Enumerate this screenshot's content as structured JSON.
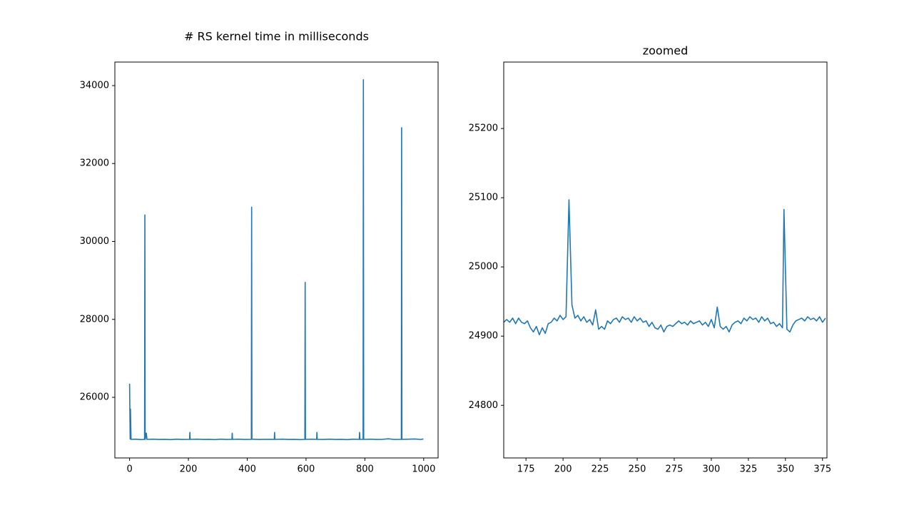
{
  "chart_data": [
    {
      "type": "line",
      "title": "# RS kernel time in milliseconds",
      "color": "#1f77b4",
      "xlim": [
        -50,
        1049
      ],
      "xticks": [
        0,
        200,
        400,
        600,
        800,
        1000
      ],
      "ylim": [
        24444,
        34604
      ],
      "yticks": [
        26000,
        28000,
        30000,
        32000,
        34000
      ],
      "x": [
        0,
        2,
        3,
        5,
        20,
        40,
        51,
        52,
        53,
        57,
        59,
        80,
        100,
        120,
        140,
        160,
        180,
        204,
        205,
        206,
        230,
        250,
        270,
        290,
        310,
        330,
        348,
        349,
        350,
        370,
        390,
        414,
        415,
        416,
        440,
        460,
        492,
        493,
        494,
        520,
        540,
        560,
        580,
        596,
        597,
        598,
        620,
        636,
        637,
        638,
        660,
        680,
        700,
        720,
        740,
        760,
        781,
        782,
        783,
        794,
        795,
        796,
        820,
        840,
        860,
        880,
        900,
        924,
        925,
        926,
        950,
        970,
        990,
        999
      ],
      "values": [
        26350,
        24930,
        25700,
        24920,
        24925,
        24915,
        24920,
        30680,
        24920,
        25080,
        24920,
        24925,
        24918,
        24922,
        24915,
        24925,
        24918,
        24920,
        25100,
        24920,
        24925,
        24918,
        24922,
        24915,
        24925,
        24918,
        24920,
        25080,
        24920,
        24925,
        24918,
        24920,
        30880,
        24925,
        24918,
        24922,
        24920,
        25100,
        24920,
        24925,
        24918,
        24922,
        24915,
        24920,
        28950,
        24920,
        24925,
        24920,
        25100,
        24920,
        24918,
        24925,
        24918,
        24922,
        24915,
        24925,
        24920,
        25100,
        24920,
        24920,
        34150,
        24920,
        24925,
        24918,
        24922,
        24935,
        24918,
        24920,
        32920,
        24920,
        24925,
        24930,
        24918,
        24930
      ]
    },
    {
      "type": "line",
      "title": "zoomed",
      "color": "#1f77b4",
      "xlim": [
        160,
        378
      ],
      "xticks": [
        175,
        200,
        225,
        250,
        275,
        300,
        325,
        350,
        375
      ],
      "ylim": [
        24724,
        25296
      ],
      "yticks": [
        24800,
        24900,
        25000,
        25100,
        25200
      ],
      "x": [
        160,
        162,
        164,
        166,
        168,
        170,
        172,
        174,
        176,
        178,
        180,
        182,
        184,
        186,
        188,
        190,
        192,
        194,
        196,
        198,
        200,
        202,
        204,
        206,
        208,
        210,
        212,
        214,
        216,
        218,
        220,
        222,
        224,
        226,
        228,
        230,
        232,
        234,
        236,
        238,
        240,
        242,
        244,
        246,
        248,
        250,
        252,
        254,
        256,
        258,
        260,
        262,
        264,
        266,
        268,
        270,
        272,
        274,
        276,
        278,
        280,
        282,
        284,
        286,
        288,
        290,
        292,
        294,
        296,
        298,
        300,
        302,
        304,
        306,
        308,
        310,
        312,
        314,
        316,
        318,
        320,
        322,
        324,
        326,
        328,
        330,
        332,
        334,
        336,
        338,
        340,
        342,
        344,
        346,
        348,
        349,
        351,
        353,
        355,
        357,
        359,
        361,
        363,
        365,
        367,
        369,
        371,
        373,
        375,
        377
      ],
      "values": [
        24920,
        24924,
        24920,
        24926,
        24918,
        24926,
        24920,
        24918,
        24922,
        24912,
        24906,
        24914,
        24902,
        24912,
        24904,
        24918,
        24920,
        24926,
        24922,
        24930,
        24924,
        24928,
        25097,
        24945,
        24926,
        24930,
        24922,
        24928,
        24920,
        24924,
        24916,
        24938,
        24910,
        24914,
        24910,
        24922,
        24918,
        24924,
        24926,
        24920,
        24928,
        24924,
        24926,
        24920,
        24928,
        24922,
        24926,
        24920,
        24922,
        24914,
        24920,
        24912,
        24910,
        24916,
        24906,
        24914,
        24916,
        24914,
        24918,
        24922,
        24918,
        24920,
        24916,
        24922,
        24918,
        24920,
        24922,
        24916,
        24920,
        24914,
        24924,
        24912,
        24942,
        24914,
        24910,
        24914,
        24906,
        24916,
        24920,
        24922,
        24918,
        24926,
        24922,
        24928,
        24924,
        24926,
        24920,
        24928,
        24922,
        24926,
        24918,
        24920,
        24914,
        24918,
        24912,
        25083,
        24910,
        24906,
        24916,
        24922,
        24924,
        24926,
        24922,
        24928,
        24924,
        24926,
        24922,
        24928,
        24920,
        24926
      ]
    }
  ]
}
